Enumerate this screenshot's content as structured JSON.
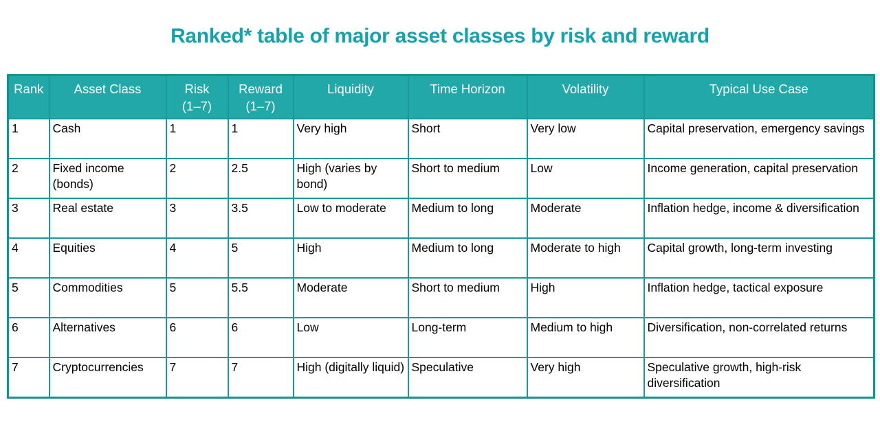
{
  "title": {
    "text": "Ranked* table of major asset classes by risk and reward",
    "color": "#14a3ad"
  },
  "table": {
    "header_bg": "#21a8a8",
    "border_color": "#1b9898",
    "header_text_color": "#ffffff",
    "columns": [
      {
        "line1": "Rank",
        "line2": ""
      },
      {
        "line1": "Asset Class",
        "line2": ""
      },
      {
        "line1": "Risk",
        "line2": "(1–7)"
      },
      {
        "line1": "Reward",
        "line2": "(1–7)"
      },
      {
        "line1": "Liquidity",
        "line2": ""
      },
      {
        "line1": "Time Horizon",
        "line2": ""
      },
      {
        "line1": "Volatility",
        "line2": ""
      },
      {
        "line1": "Typical Use Case",
        "line2": ""
      }
    ],
    "rows": [
      {
        "cells": [
          "1",
          "Cash",
          "1",
          "1",
          "Very high",
          "Short",
          "Very low",
          "Capital preservation, emergency savings"
        ]
      },
      {
        "cells": [
          "2",
          "Fixed income (bonds)",
          "2",
          "2.5",
          "High (varies by bond)",
          "Short to medium",
          "Low",
          "Income generation, capital preservation"
        ]
      },
      {
        "cells": [
          "3",
          "Real estate",
          "3",
          "3.5",
          "Low to moderate",
          "Medium to long",
          "Moderate",
          "Inflation hedge, income & diversification"
        ]
      },
      {
        "cells": [
          "4",
          "Equities",
          "4",
          "5",
          "High",
          "Medium to long",
          "Moderate to high",
          "Capital growth, long-term investing"
        ]
      },
      {
        "cells": [
          "5",
          "Commodities",
          "5",
          "5.5",
          "Moderate",
          "Short to medium",
          "High",
          "Inflation hedge, tactical exposure"
        ]
      },
      {
        "cells": [
          "6",
          "Alternatives",
          "6",
          "6",
          "Low",
          "Long-term",
          "Medium to high",
          "Diversification, non-correlated returns"
        ]
      },
      {
        "cells": [
          "7",
          "Cryptocurrencies",
          "7",
          "7",
          "High (digitally liquid)",
          "Speculative",
          "Very high",
          "Speculative growth, high-risk diversification"
        ]
      }
    ]
  },
  "chart_data": {
    "type": "table",
    "title": "Ranked* table of major asset classes by risk and reward",
    "columns": [
      "Rank",
      "Asset Class",
      "Risk (1–7)",
      "Reward (1–7)",
      "Liquidity",
      "Time Horizon",
      "Volatility",
      "Typical Use Case"
    ],
    "rows": [
      [
        "1",
        "Cash",
        "1",
        "1",
        "Very high",
        "Short",
        "Very low",
        "Capital preservation, emergency savings"
      ],
      [
        "2",
        "Fixed income (bonds)",
        "2",
        "2.5",
        "High (varies by bond)",
        "Short to medium",
        "Low",
        "Income generation, capital preservation"
      ],
      [
        "3",
        "Real estate",
        "3",
        "3.5",
        "Low to moderate",
        "Medium to long",
        "Moderate",
        "Inflation hedge, income & diversification"
      ],
      [
        "4",
        "Equities",
        "4",
        "5",
        "High",
        "Medium to long",
        "Moderate to high",
        "Capital growth, long-term investing"
      ],
      [
        "5",
        "Commodities",
        "5",
        "5.5",
        "Moderate",
        "Short to medium",
        "High",
        "Inflation hedge, tactical exposure"
      ],
      [
        "6",
        "Alternatives",
        "6",
        "6",
        "Low",
        "Long-term",
        "Medium to high",
        "Diversification, non-correlated returns"
      ],
      [
        "7",
        "Cryptocurrencies",
        "7",
        "7",
        "High (digitally liquid)",
        "Speculative",
        "Very high",
        "Speculative growth, high-risk diversification"
      ]
    ]
  }
}
